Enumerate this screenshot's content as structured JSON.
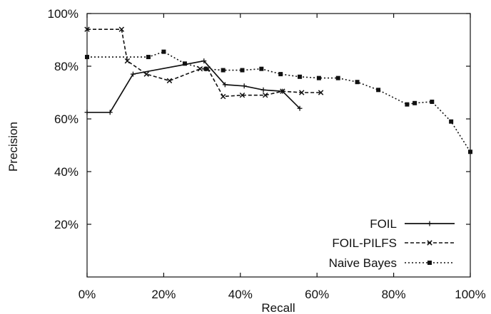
{
  "chart_data": {
    "type": "line",
    "xlabel": "Recall",
    "ylabel": "Precision",
    "xlim": [
      0,
      100
    ],
    "ylim": [
      0,
      100
    ],
    "x_ticks": [
      "0%",
      "20%",
      "40%",
      "60%",
      "80%",
      "100%"
    ],
    "y_ticks": [
      "20%",
      "40%",
      "60%",
      "80%",
      "100%"
    ],
    "grid": false,
    "legend_position": "bottom-right",
    "series": [
      {
        "name": "FOIL",
        "line_style": "solid",
        "marker": "plus",
        "points": [
          [
            0,
            62.5
          ],
          [
            6,
            62.5
          ],
          [
            12,
            77
          ],
          [
            30.5,
            82
          ],
          [
            36,
            73
          ],
          [
            41,
            72.5
          ],
          [
            46,
            71
          ],
          [
            51,
            70.5
          ],
          [
            55.5,
            64
          ]
        ]
      },
      {
        "name": "FOIL-PILFS",
        "line_style": "dashed",
        "marker": "cross",
        "points": [
          [
            0,
            94
          ],
          [
            9,
            94
          ],
          [
            10.5,
            82
          ],
          [
            15.5,
            77
          ],
          [
            21.5,
            74.5
          ],
          [
            29.5,
            79
          ],
          [
            31.5,
            79
          ],
          [
            35.5,
            68.5
          ],
          [
            40.5,
            69
          ],
          [
            46.5,
            69
          ],
          [
            51,
            70.5
          ],
          [
            56,
            70
          ],
          [
            61,
            70
          ]
        ]
      },
      {
        "name": "Naive Bayes",
        "line_style": "dotted",
        "marker": "square",
        "points": [
          [
            0,
            83.5
          ],
          [
            16,
            83.5
          ],
          [
            20,
            85.5
          ],
          [
            25.5,
            81
          ],
          [
            31,
            79
          ],
          [
            35.5,
            78.5
          ],
          [
            40.5,
            78.5
          ],
          [
            45.5,
            79
          ],
          [
            50.5,
            77
          ],
          [
            55.5,
            76
          ],
          [
            60.5,
            75.5
          ],
          [
            65.5,
            75.5
          ],
          [
            70.5,
            74
          ],
          [
            76,
            71
          ],
          [
            83.5,
            65.5
          ],
          [
            85.5,
            66
          ],
          [
            90,
            66.5
          ],
          [
            95,
            59
          ],
          [
            100,
            47.5
          ]
        ]
      }
    ]
  }
}
